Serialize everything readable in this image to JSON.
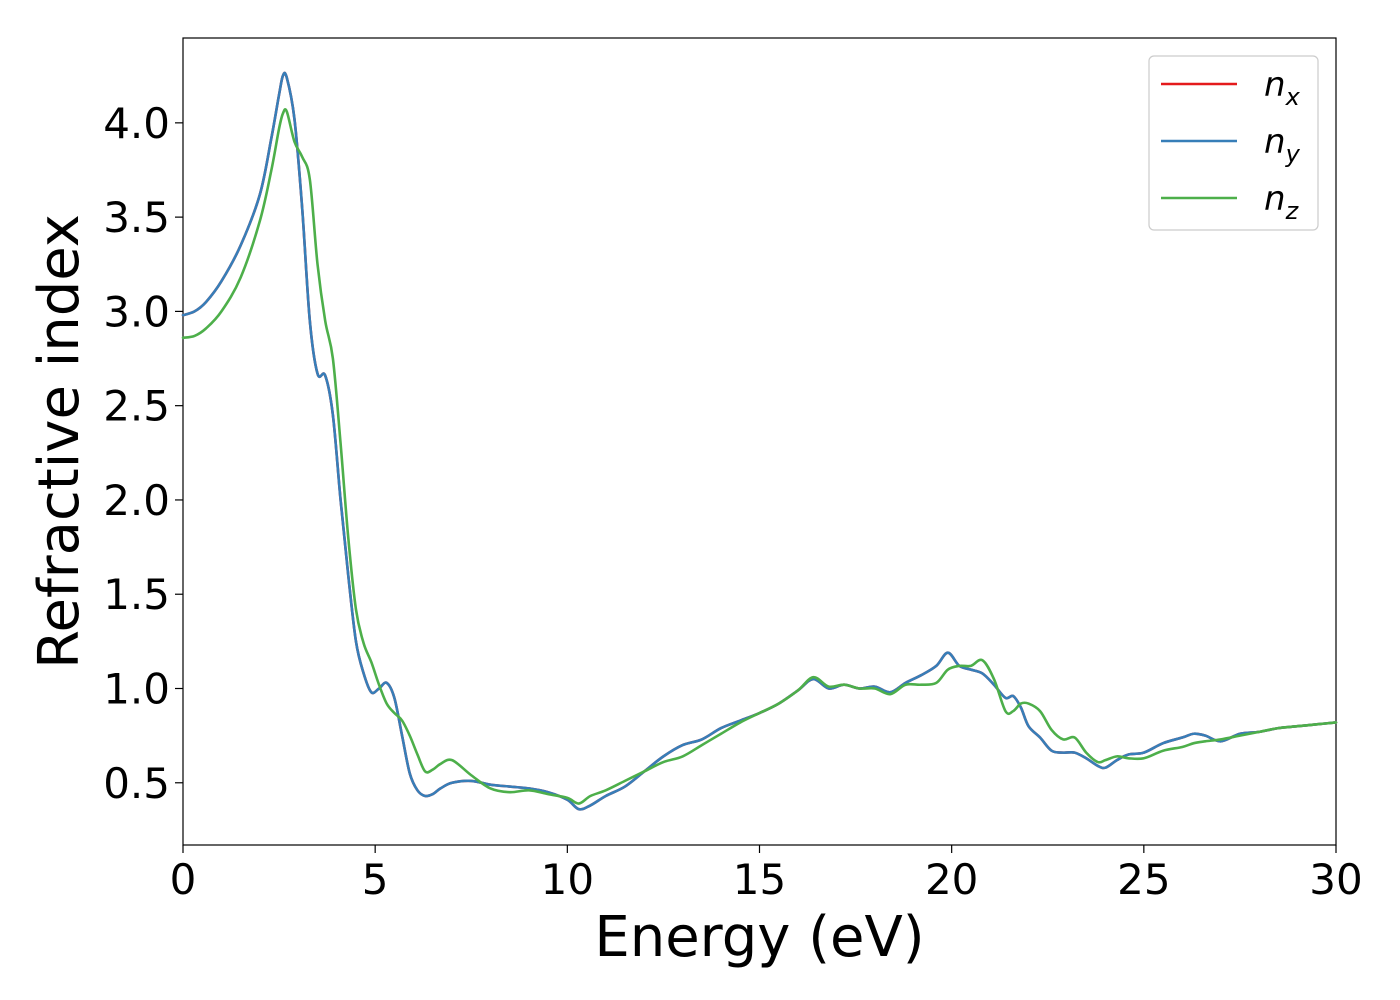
{
  "chart_data": {
    "type": "line",
    "title": "",
    "xlabel": "Energy (eV)",
    "ylabel": "Refractive index",
    "xlim": [
      0,
      30
    ],
    "ylim": [
      0.17,
      4.45
    ],
    "xticks": [
      0,
      5,
      10,
      15,
      20,
      25,
      30
    ],
    "yticks": [
      0.5,
      1.0,
      1.5,
      2.0,
      2.5,
      3.0,
      3.5,
      4.0
    ],
    "grid": false,
    "legend": {
      "placement": "top-right",
      "entries": [
        {
          "base": "n",
          "sub": "x",
          "color": "#e41a1c"
        },
        {
          "base": "n",
          "sub": "y",
          "color": "#377eb8"
        },
        {
          "base": "n",
          "sub": "z",
          "color": "#4daf4a"
        }
      ]
    },
    "series": [
      {
        "name": "n_x",
        "color": "#e41a1c",
        "x": [
          0,
          0.3,
          0.6,
          1.0,
          1.5,
          2.0,
          2.3,
          2.5,
          2.6,
          2.7,
          2.9,
          3.1,
          3.3,
          3.5,
          3.7,
          3.9,
          4.1,
          4.3,
          4.5,
          4.7,
          4.9,
          5.1,
          5.3,
          5.5,
          5.7,
          5.9,
          6.1,
          6.3,
          6.5,
          6.7,
          7.0,
          7.5,
          8.0,
          8.5,
          9.0,
          9.5,
          10.0,
          10.3,
          10.6,
          11.0,
          11.5,
          12.0,
          12.5,
          13.0,
          13.5,
          14.0,
          14.5,
          15.0,
          15.5,
          16.0,
          16.4,
          16.8,
          17.2,
          17.6,
          18.0,
          18.4,
          18.8,
          19.2,
          19.6,
          19.9,
          20.2,
          20.5,
          20.8,
          21.1,
          21.4,
          21.6,
          21.8,
          22.0,
          22.3,
          22.6,
          22.9,
          23.2,
          23.5,
          23.8,
          24.0,
          24.3,
          24.6,
          25.0,
          25.5,
          26.0,
          26.3,
          26.6,
          27.0,
          27.5,
          28.0,
          28.5,
          29.0,
          29.5,
          30.0
        ],
        "values": [
          2.98,
          3.0,
          3.05,
          3.16,
          3.35,
          3.62,
          3.92,
          4.15,
          4.25,
          4.24,
          4.02,
          3.55,
          2.95,
          2.67,
          2.66,
          2.45,
          2.0,
          1.6,
          1.25,
          1.08,
          0.98,
          1.0,
          1.03,
          0.95,
          0.75,
          0.55,
          0.46,
          0.43,
          0.44,
          0.47,
          0.5,
          0.51,
          0.49,
          0.48,
          0.47,
          0.45,
          0.41,
          0.36,
          0.38,
          0.43,
          0.48,
          0.56,
          0.64,
          0.7,
          0.73,
          0.79,
          0.83,
          0.87,
          0.92,
          0.99,
          1.05,
          1.0,
          1.02,
          1.0,
          1.01,
          0.98,
          1.03,
          1.07,
          1.12,
          1.19,
          1.12,
          1.1,
          1.08,
          1.02,
          0.95,
          0.96,
          0.9,
          0.8,
          0.74,
          0.67,
          0.66,
          0.66,
          0.63,
          0.59,
          0.58,
          0.62,
          0.65,
          0.66,
          0.71,
          0.74,
          0.76,
          0.75,
          0.72,
          0.76,
          0.77,
          0.79,
          0.8,
          0.81,
          0.82
        ]
      },
      {
        "name": "n_y",
        "color": "#377eb8",
        "x": [
          0,
          0.3,
          0.6,
          1.0,
          1.5,
          2.0,
          2.3,
          2.5,
          2.6,
          2.7,
          2.9,
          3.1,
          3.3,
          3.5,
          3.7,
          3.9,
          4.1,
          4.3,
          4.5,
          4.7,
          4.9,
          5.1,
          5.3,
          5.5,
          5.7,
          5.9,
          6.1,
          6.3,
          6.5,
          6.7,
          7.0,
          7.5,
          8.0,
          8.5,
          9.0,
          9.5,
          10.0,
          10.3,
          10.6,
          11.0,
          11.5,
          12.0,
          12.5,
          13.0,
          13.5,
          14.0,
          14.5,
          15.0,
          15.5,
          16.0,
          16.4,
          16.8,
          17.2,
          17.6,
          18.0,
          18.4,
          18.8,
          19.2,
          19.6,
          19.9,
          20.2,
          20.5,
          20.8,
          21.1,
          21.4,
          21.6,
          21.8,
          22.0,
          22.3,
          22.6,
          22.9,
          23.2,
          23.5,
          23.8,
          24.0,
          24.3,
          24.6,
          25.0,
          25.5,
          26.0,
          26.3,
          26.6,
          27.0,
          27.5,
          28.0,
          28.5,
          29.0,
          29.5,
          30.0
        ],
        "values": [
          2.98,
          3.0,
          3.05,
          3.16,
          3.35,
          3.62,
          3.92,
          4.15,
          4.25,
          4.24,
          4.02,
          3.55,
          2.95,
          2.67,
          2.66,
          2.45,
          2.0,
          1.6,
          1.25,
          1.08,
          0.98,
          1.0,
          1.03,
          0.95,
          0.75,
          0.55,
          0.46,
          0.43,
          0.44,
          0.47,
          0.5,
          0.51,
          0.49,
          0.48,
          0.47,
          0.45,
          0.41,
          0.36,
          0.38,
          0.43,
          0.48,
          0.56,
          0.64,
          0.7,
          0.73,
          0.79,
          0.83,
          0.87,
          0.92,
          0.99,
          1.05,
          1.0,
          1.02,
          1.0,
          1.01,
          0.98,
          1.03,
          1.07,
          1.12,
          1.19,
          1.12,
          1.1,
          1.08,
          1.02,
          0.95,
          0.96,
          0.9,
          0.8,
          0.74,
          0.67,
          0.66,
          0.66,
          0.63,
          0.59,
          0.58,
          0.62,
          0.65,
          0.66,
          0.71,
          0.74,
          0.76,
          0.75,
          0.72,
          0.76,
          0.77,
          0.79,
          0.8,
          0.81,
          0.82
        ]
      },
      {
        "name": "n_z",
        "color": "#4daf4a",
        "x": [
          0,
          0.3,
          0.6,
          1.0,
          1.5,
          2.0,
          2.3,
          2.5,
          2.6,
          2.7,
          2.9,
          3.1,
          3.3,
          3.5,
          3.7,
          3.9,
          4.1,
          4.3,
          4.5,
          4.7,
          4.9,
          5.1,
          5.3,
          5.5,
          5.7,
          5.9,
          6.1,
          6.3,
          6.5,
          6.7,
          7.0,
          7.5,
          8.0,
          8.5,
          9.0,
          9.5,
          10.0,
          10.3,
          10.6,
          11.0,
          11.5,
          12.0,
          12.5,
          13.0,
          13.5,
          14.0,
          14.5,
          15.0,
          15.5,
          16.0,
          16.4,
          16.8,
          17.2,
          17.6,
          18.0,
          18.4,
          18.8,
          19.2,
          19.6,
          19.9,
          20.2,
          20.5,
          20.8,
          21.1,
          21.4,
          21.6,
          21.8,
          22.0,
          22.3,
          22.6,
          22.9,
          23.2,
          23.5,
          23.8,
          24.0,
          24.3,
          24.6,
          25.0,
          25.5,
          26.0,
          26.3,
          26.6,
          27.0,
          27.5,
          28.0,
          28.5,
          29.0,
          29.5,
          30.0
        ],
        "values": [
          2.86,
          2.87,
          2.91,
          3.0,
          3.18,
          3.48,
          3.75,
          3.97,
          4.05,
          4.06,
          3.9,
          3.82,
          3.7,
          3.25,
          2.95,
          2.75,
          2.3,
          1.8,
          1.42,
          1.24,
          1.14,
          1.02,
          0.92,
          0.87,
          0.83,
          0.75,
          0.65,
          0.56,
          0.57,
          0.6,
          0.62,
          0.54,
          0.47,
          0.45,
          0.46,
          0.44,
          0.42,
          0.39,
          0.43,
          0.46,
          0.51,
          0.56,
          0.61,
          0.64,
          0.7,
          0.76,
          0.82,
          0.87,
          0.92,
          0.99,
          1.06,
          1.01,
          1.02,
          1.0,
          1.0,
          0.97,
          1.02,
          1.02,
          1.03,
          1.1,
          1.12,
          1.12,
          1.15,
          1.05,
          0.88,
          0.88,
          0.92,
          0.92,
          0.88,
          0.78,
          0.73,
          0.74,
          0.66,
          0.61,
          0.62,
          0.64,
          0.63,
          0.63,
          0.67,
          0.69,
          0.71,
          0.72,
          0.73,
          0.75,
          0.77,
          0.79,
          0.8,
          0.81,
          0.82
        ]
      }
    ]
  }
}
